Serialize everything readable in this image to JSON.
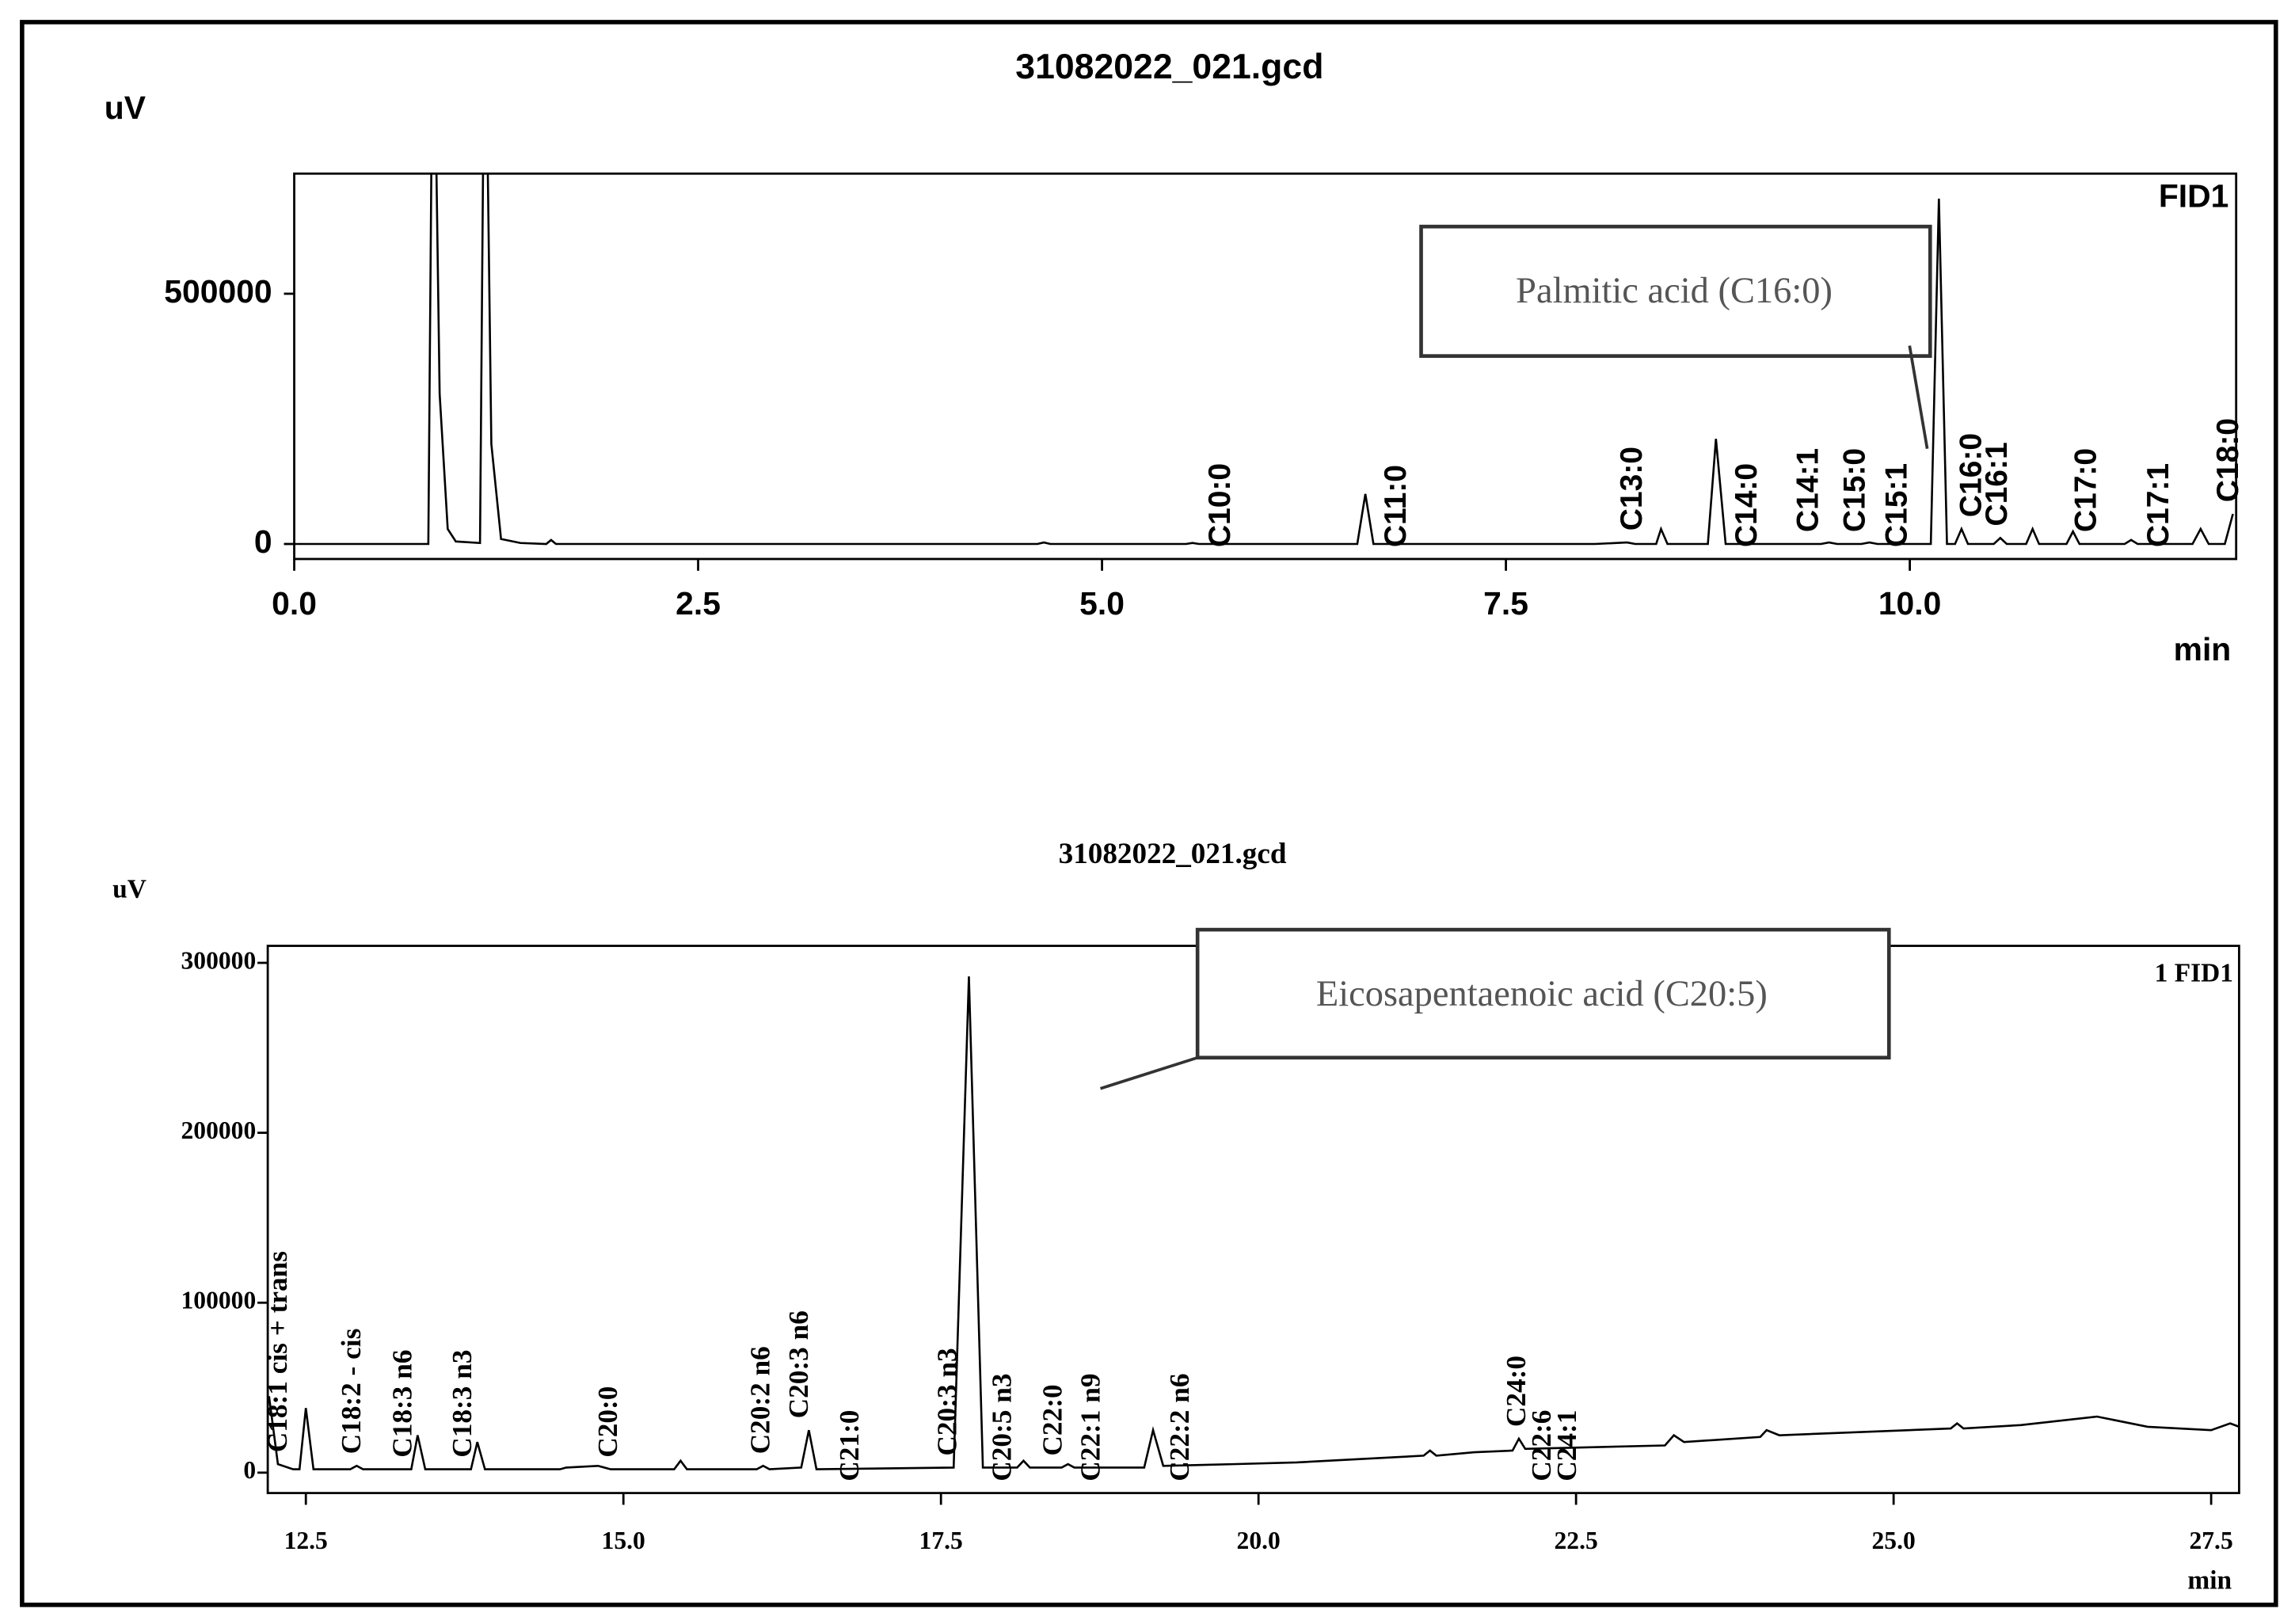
{
  "chart_data": [
    {
      "type": "line",
      "title": "31082022_021.gcd",
      "y_label": "uV",
      "x_label": "min",
      "channel": "FID1",
      "callout": "Palmitic acid (C16:0)",
      "color": "#000000",
      "xlim": [
        0,
        12.02
      ],
      "ylim": [
        -30000,
        740000
      ],
      "xticks": [
        {
          "value": 0,
          "label": "0.0"
        },
        2.5,
        {
          "value": 5,
          "label": "5.0"
        },
        7.5,
        {
          "value": 10,
          "label": "10.0"
        }
      ],
      "yticks": [
        0,
        500000
      ],
      "x": [
        0,
        0.83,
        0.86,
        0.9,
        0.95,
        1.0,
        1.15,
        1.18,
        1.22,
        1.28,
        1.4,
        1.56,
        1.59,
        1.62,
        4.6,
        4.64,
        4.68,
        5.52,
        5.56,
        5.6,
        6.58,
        6.63,
        6.68,
        8.05,
        8.25,
        8.3,
        8.43,
        8.46,
        8.5,
        8.75,
        8.8,
        8.86,
        9.45,
        9.5,
        9.55,
        9.7,
        9.75,
        9.8,
        10.13,
        10.18,
        10.23,
        10.28,
        10.32,
        10.36,
        10.52,
        10.56,
        10.6,
        10.72,
        10.76,
        10.8,
        10.97,
        11.01,
        11.05,
        11.33,
        11.37,
        11.41,
        11.75,
        11.8,
        11.85,
        11.95,
        12.0
      ],
      "values": [
        0,
        0,
        1200000,
        300000,
        30000,
        5000,
        2000,
        1200000,
        200000,
        10000,
        2000,
        0,
        8000,
        0,
        0,
        3000,
        0,
        0,
        2000,
        0,
        0,
        100000,
        0,
        0,
        3000,
        0,
        0,
        30000,
        0,
        0,
        210000,
        0,
        0,
        3000,
        0,
        0,
        3000,
        0,
        0,
        690000,
        0,
        0,
        30000,
        0,
        0,
        12000,
        0,
        0,
        30000,
        0,
        0,
        25000,
        0,
        0,
        8000,
        0,
        0,
        30000,
        0,
        0,
        60000
      ],
      "peaks": [
        {
          "label": "C10:0",
          "x": 5.74
        },
        {
          "label": "C11:0",
          "x": 6.83
        },
        {
          "label": "C13:0",
          "x": 8.29
        },
        {
          "label": "C14:0",
          "x": 9.0
        },
        {
          "label": "C14:1",
          "x": 9.38
        },
        {
          "label": "C15:0",
          "x": 9.67
        },
        {
          "label": "C15:1",
          "x": 9.93
        },
        {
          "label": "C16:0",
          "x": 10.39
        },
        {
          "label": "C16:1",
          "x": 10.55
        },
        {
          "label": "C17:0",
          "x": 11.1
        },
        {
          "label": "C17:1",
          "x": 11.55
        },
        {
          "label": "C18:0",
          "x": 11.98
        }
      ]
    },
    {
      "type": "line",
      "title": "31082022_021.gcd",
      "y_label": "uV",
      "x_label": "min",
      "channel": "1 FID1",
      "callout": "Eicosapentaenoic acid (C20:5)",
      "color": "#000000",
      "xlim": [
        12.2,
        27.72
      ],
      "ylim": [
        -12000,
        310000
      ],
      "xticks": [
        12.5,
        {
          "value": 15,
          "label": "15.0"
        },
        17.5,
        {
          "value": 20,
          "label": "20.0"
        },
        22.5,
        {
          "value": 25,
          "label": "25.0"
        },
        27.5
      ],
      "yticks": [
        0,
        100000,
        200000,
        300000
      ],
      "x": [
        12.21,
        12.28,
        12.4,
        12.45,
        12.5,
        12.56,
        12.85,
        12.9,
        12.95,
        13.33,
        13.38,
        13.44,
        13.8,
        13.85,
        13.91,
        14.5,
        14.55,
        14.8,
        14.9,
        15.4,
        15.45,
        15.5,
        16.05,
        16.1,
        16.15,
        16.4,
        16.46,
        16.52,
        17.6,
        17.72,
        17.83,
        18.1,
        18.15,
        18.2,
        18.45,
        18.5,
        18.55,
        19.1,
        19.17,
        19.25,
        19.8,
        20.3,
        21.3,
        21.35,
        21.4,
        21.7,
        22.0,
        22.05,
        22.1,
        23.2,
        23.27,
        23.35,
        23.95,
        24.0,
        24.1,
        25.45,
        25.5,
        25.55,
        26.0,
        26.6,
        27.0,
        27.5,
        27.65,
        27.72
      ],
      "values": [
        45000,
        5000,
        2000,
        2000,
        38000,
        2000,
        2000,
        4000,
        2000,
        2000,
        22000,
        2000,
        2000,
        18000,
        2000,
        2000,
        3000,
        4000,
        2000,
        2000,
        7000,
        2000,
        2000,
        4000,
        2000,
        3000,
        25000,
        2000,
        3000,
        292000,
        3000,
        3000,
        7000,
        3000,
        3000,
        5000,
        3000,
        3000,
        25000,
        4000,
        5000,
        6000,
        10000,
        13000,
        10000,
        12000,
        13000,
        20000,
        14000,
        16000,
        22000,
        18000,
        21000,
        25000,
        22000,
        26000,
        29000,
        26000,
        28000,
        33000,
        27000,
        25000,
        29000,
        27000
      ],
      "peaks": [
        {
          "label": "C18:1 cis + trans",
          "x": 12.3
        },
        {
          "label": "C18:2 - cis",
          "x": 12.88
        },
        {
          "label": "C18:3 n6",
          "x": 13.28
        },
        {
          "label": "C18:3 n3",
          "x": 13.75
        },
        {
          "label": "C20:0",
          "x": 14.9
        },
        {
          "label": "C20:2 n6",
          "x": 16.1
        },
        {
          "label": "C20:3 n6",
          "x": 16.4
        },
        {
          "label": "C21:0",
          "x": 16.8
        },
        {
          "label": "C20:3 n3",
          "x": 17.57
        },
        {
          "label": "C20:5 n3",
          "x": 18.0
        },
        {
          "label": "C22:0",
          "x": 18.4
        },
        {
          "label": "C22:1 n9",
          "x": 18.7
        },
        {
          "label": "C22:2 n6",
          "x": 19.4
        },
        {
          "label": "C24:0",
          "x": 22.05
        },
        {
          "label": "C22:6",
          "x": 22.25
        },
        {
          "label": "C24:1",
          "x": 22.45
        }
      ]
    }
  ]
}
